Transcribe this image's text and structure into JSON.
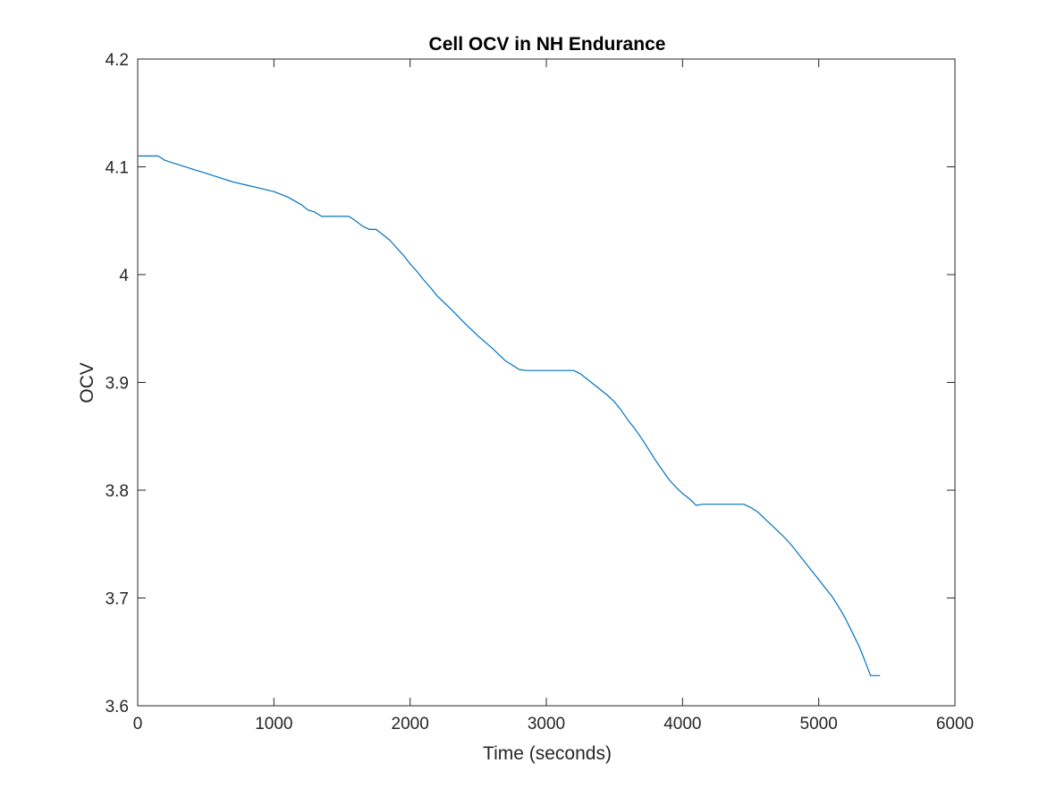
{
  "chart_data": {
    "type": "line",
    "title": "Cell OCV in NH Endurance",
    "xlabel": "Time (seconds)",
    "ylabel": "OCV",
    "xlim": [
      0,
      6000
    ],
    "ylim": [
      3.6,
      4.2
    ],
    "x_ticks": [
      0,
      1000,
      2000,
      3000,
      4000,
      5000,
      6000
    ],
    "x_tick_labels": [
      "0",
      "1000",
      "2000",
      "3000",
      "4000",
      "5000",
      "6000"
    ],
    "y_ticks": [
      3.6,
      3.7,
      3.8,
      3.9,
      4.0,
      4.1,
      4.2
    ],
    "y_tick_labels": [
      "3.6",
      "3.7",
      "3.8",
      "3.9",
      "4",
      "4.1",
      "4.2"
    ],
    "grid": false,
    "box": true,
    "series_color": "#0072BD",
    "axis_color": "#262626",
    "series": [
      {
        "x": [
          0,
          150,
          200,
          300,
          400,
          500,
          600,
          700,
          800,
          900,
          1000,
          1100,
          1200,
          1250,
          1300,
          1350,
          1450,
          1550,
          1600,
          1650,
          1700,
          1750,
          1800,
          1850,
          1900,
          1950,
          2000,
          2050,
          2100,
          2150,
          2200,
          2300,
          2400,
          2500,
          2600,
          2700,
          2800,
          2850,
          3000,
          3100,
          3200,
          3250,
          3300,
          3350,
          3400,
          3450,
          3500,
          3550,
          3600,
          3650,
          3700,
          3750,
          3800,
          3850,
          3900,
          3950,
          4000,
          4050,
          4100,
          4150,
          4200,
          4250,
          4350,
          4450,
          4500,
          4550,
          4600,
          4650,
          4700,
          4750,
          4800,
          4850,
          4900,
          4950,
          5000,
          5050,
          5100,
          5150,
          5200,
          5250,
          5300,
          5350,
          5380,
          5400,
          5420,
          5450
        ],
        "y": [
          4.11,
          4.11,
          4.106,
          4.102,
          4.098,
          4.094,
          4.09,
          4.086,
          4.083,
          4.08,
          4.077,
          4.072,
          4.065,
          4.06,
          4.058,
          4.054,
          4.054,
          4.054,
          4.05,
          4.045,
          4.042,
          4.042,
          4.037,
          4.032,
          4.025,
          4.018,
          4.01,
          4.003,
          3.995,
          3.988,
          3.98,
          3.968,
          3.955,
          3.943,
          3.932,
          3.92,
          3.912,
          3.911,
          3.911,
          3.911,
          3.911,
          3.908,
          3.903,
          3.898,
          3.893,
          3.888,
          3.882,
          3.874,
          3.865,
          3.857,
          3.848,
          3.838,
          3.828,
          3.819,
          3.81,
          3.803,
          3.797,
          3.792,
          3.786,
          3.787,
          3.787,
          3.787,
          3.787,
          3.787,
          3.784,
          3.78,
          3.774,
          3.768,
          3.762,
          3.756,
          3.749,
          3.741,
          3.733,
          3.725,
          3.717,
          3.709,
          3.701,
          3.691,
          3.68,
          3.667,
          3.654,
          3.638,
          3.628,
          3.628,
          3.628,
          3.628
        ]
      }
    ]
  }
}
